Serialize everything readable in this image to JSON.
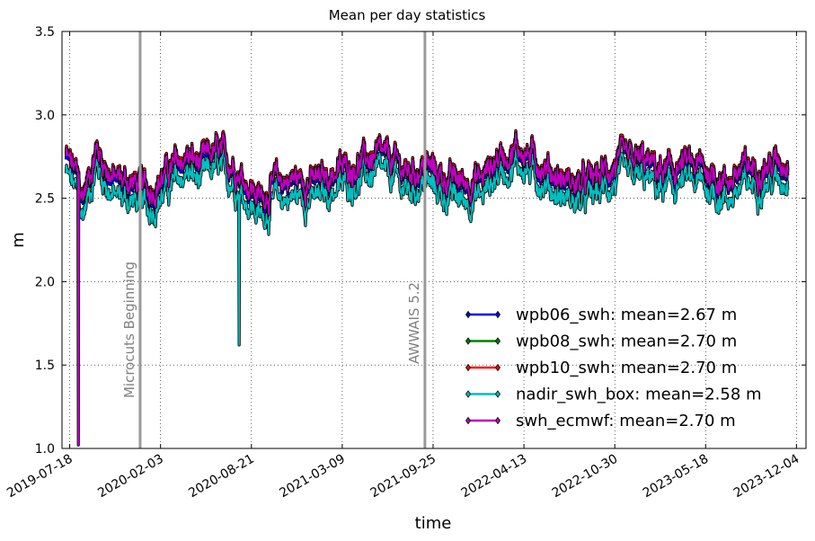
{
  "chart_data": {
    "type": "line",
    "title": "Mean per day statistics",
    "xlabel": "time",
    "ylabel": "m",
    "ylim": [
      1.0,
      3.5
    ],
    "xlim": [
      "2019-07-01",
      "2023-12-25"
    ],
    "yticks": [
      "1.0",
      "1.5",
      "2.0",
      "2.5",
      "3.0",
      "3.5"
    ],
    "xticks": [
      "2019-07-18",
      "2020-02-03",
      "2020-08-21",
      "2021-03-09",
      "2021-09-25",
      "2022-04-13",
      "2022-10-30",
      "2023-05-18",
      "2023-12-04"
    ],
    "grid": true,
    "legend_position": "lower-right",
    "annotations": [
      {
        "date": "2019-12-20",
        "label": "Microcuts Beginning",
        "color": "#999999"
      },
      {
        "date": "2021-09-07",
        "label": "AWWAIS 5.2",
        "color": "#999999"
      }
    ],
    "series": [
      {
        "name": "wpb06_swh: mean=2.67 m",
        "color": "#0000ff"
      },
      {
        "name": "wpb08_swh: mean=2.70 m",
        "color": "#008000"
      },
      {
        "name": "wpb10_swh: mean=2.70 m",
        "color": "#ff0000"
      },
      {
        "name": "nadir_swh_box: mean=2.58 m",
        "color": "#00bfbf"
      },
      {
        "name": "swh_ecmwf: mean=2.70 m",
        "color": "#bf00bf"
      }
    ],
    "x_start": "2019-07-10",
    "x_end": "2023-11-15",
    "anchors": [
      {
        "date": "2019-07-10",
        "y": 2.75
      },
      {
        "date": "2019-08-01",
        "y": 2.65
      },
      {
        "date": "2019-08-15",
        "y": 2.5
      },
      {
        "date": "2019-09-15",
        "y": 2.8
      },
      {
        "date": "2019-10-20",
        "y": 2.62
      },
      {
        "date": "2019-12-01",
        "y": 2.6
      },
      {
        "date": "2020-01-10",
        "y": 2.55
      },
      {
        "date": "2020-02-15",
        "y": 2.65
      },
      {
        "date": "2020-04-01",
        "y": 2.75
      },
      {
        "date": "2020-05-01",
        "y": 2.7
      },
      {
        "date": "2020-06-01",
        "y": 2.78
      },
      {
        "date": "2020-07-15",
        "y": 2.7
      },
      {
        "date": "2020-08-10",
        "y": 2.6
      },
      {
        "date": "2020-09-10",
        "y": 2.5
      },
      {
        "date": "2020-10-15",
        "y": 2.6
      },
      {
        "date": "2020-12-01",
        "y": 2.62
      },
      {
        "date": "2021-01-15",
        "y": 2.6
      },
      {
        "date": "2021-02-15",
        "y": 2.65
      },
      {
        "date": "2021-04-01",
        "y": 2.7
      },
      {
        "date": "2021-05-20",
        "y": 2.75
      },
      {
        "date": "2021-07-01",
        "y": 2.72
      },
      {
        "date": "2021-08-01",
        "y": 2.65
      },
      {
        "date": "2021-09-10",
        "y": 2.7
      },
      {
        "date": "2021-10-20",
        "y": 2.62
      },
      {
        "date": "2021-12-01",
        "y": 2.6
      },
      {
        "date": "2022-01-10",
        "y": 2.62
      },
      {
        "date": "2022-02-15",
        "y": 2.75
      },
      {
        "date": "2022-04-01",
        "y": 2.8
      },
      {
        "date": "2022-05-15",
        "y": 2.72
      },
      {
        "date": "2022-07-01",
        "y": 2.62
      },
      {
        "date": "2022-08-15",
        "y": 2.58
      },
      {
        "date": "2022-10-01",
        "y": 2.65
      },
      {
        "date": "2022-11-15",
        "y": 2.72
      },
      {
        "date": "2023-01-01",
        "y": 2.72
      },
      {
        "date": "2023-02-15",
        "y": 2.65
      },
      {
        "date": "2023-04-01",
        "y": 2.7
      },
      {
        "date": "2023-05-15",
        "y": 2.68
      },
      {
        "date": "2023-07-01",
        "y": 2.6
      },
      {
        "date": "2023-08-15",
        "y": 2.68
      },
      {
        "date": "2023-10-01",
        "y": 2.7
      },
      {
        "date": "2023-11-15",
        "y": 2.72
      }
    ],
    "outliers": [
      {
        "series": "swh_ecmwf: mean=2.70 m",
        "date": "2019-08-06",
        "y": 1.02
      },
      {
        "series": "nadir_swh_box: mean=2.58 m",
        "date": "2020-07-25",
        "y": 1.62
      }
    ]
  }
}
